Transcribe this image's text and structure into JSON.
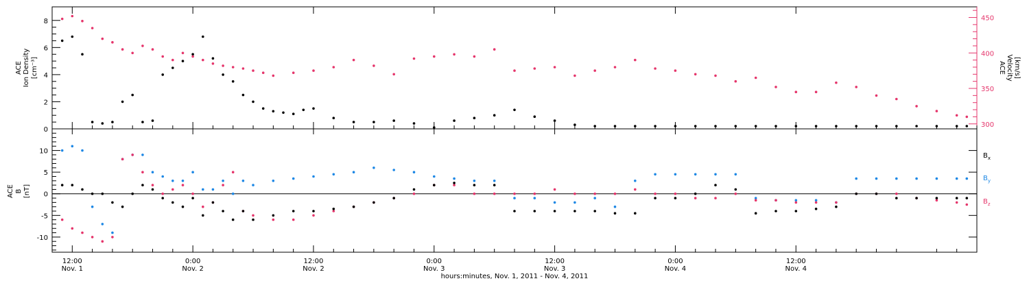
{
  "chart_data": [
    {
      "type": "scatter",
      "panel": "top",
      "left_ylabel_lines": [
        "ACE",
        "Ion Density",
        "[cm⁻³]"
      ],
      "right_ylabel_lines": [
        "ACE",
        "Velocity",
        "[km/s]"
      ],
      "ylim_left": [
        0,
        9
      ],
      "ylim_right": [
        293,
        465
      ],
      "left_yticks": [
        0,
        2,
        4,
        6,
        8
      ],
      "right_yticks": [
        300,
        350,
        400,
        450
      ],
      "x_range_hours": [
        -2,
        90
      ],
      "series": [
        {
          "axis": "left",
          "color": "#000000",
          "x": [
            -1,
            0,
            1,
            2,
            3,
            4,
            5,
            6,
            7,
            8,
            9,
            10,
            11,
            12,
            13,
            14,
            15,
            16,
            17,
            18,
            19,
            20,
            21,
            22,
            23,
            24,
            26,
            28,
            30,
            32,
            34,
            36,
            38,
            40,
            42,
            44,
            46,
            48,
            50,
            52,
            54,
            56,
            58,
            60,
            62,
            64,
            66,
            68,
            70,
            72,
            74,
            76,
            78,
            80,
            82,
            84,
            86,
            88,
            89
          ],
          "values": [
            6.5,
            6.8,
            5.5,
            0.5,
            0.4,
            0.5,
            2.0,
            2.5,
            0.5,
            0.6,
            4.0,
            4.5,
            5.0,
            5.5,
            6.8,
            5.2,
            4.0,
            3.5,
            2.5,
            2.0,
            1.5,
            1.3,
            1.2,
            1.1,
            1.4,
            1.5,
            0.8,
            0.5,
            0.5,
            0.6,
            0.4,
            0.1,
            0.6,
            0.8,
            1.0,
            1.4,
            0.9,
            0.6,
            0.3,
            0.2,
            0.2,
            0.2,
            0.2,
            0.2,
            0.2,
            0.2,
            0.2,
            0.2,
            0.2,
            0.2,
            0.2,
            0.2,
            0.2,
            0.2,
            0.2,
            0.2,
            0.2,
            0.2,
            0.2
          ]
        },
        {
          "axis": "right",
          "color": "#e5356b",
          "x": [
            -1,
            0,
            1,
            2,
            3,
            4,
            5,
            6,
            7,
            8,
            9,
            10,
            11,
            12,
            13,
            14,
            15,
            16,
            17,
            18,
            19,
            20,
            22,
            24,
            26,
            28,
            30,
            32,
            34,
            36,
            38,
            40,
            42,
            44,
            46,
            48,
            50,
            52,
            54,
            56,
            58,
            60,
            62,
            64,
            66,
            68,
            70,
            72,
            74,
            76,
            78,
            80,
            82,
            84,
            86,
            88,
            89
          ],
          "values": [
            448,
            452,
            445,
            435,
            420,
            415,
            405,
            400,
            410,
            405,
            395,
            390,
            400,
            395,
            390,
            385,
            382,
            380,
            378,
            375,
            372,
            368,
            372,
            375,
            380,
            390,
            382,
            370,
            392,
            395,
            398,
            395,
            405,
            375,
            378,
            380,
            368,
            375,
            380,
            390,
            378,
            375,
            370,
            368,
            360,
            365,
            352,
            345,
            345,
            358,
            352,
            340,
            335,
            325,
            318,
            312,
            310
          ]
        }
      ]
    },
    {
      "type": "scatter",
      "panel": "bottom",
      "ylabel_lines": [
        "ACE",
        "B",
        "[nT]"
      ],
      "ylim": [
        -13.5,
        15
      ],
      "yticks": [
        -10,
        -5,
        0,
        5,
        10
      ],
      "x_range_hours": [
        -2,
        90
      ],
      "series": [
        {
          "name": "Bx",
          "color": "#000000",
          "x": [
            -1,
            0,
            1,
            2,
            3,
            4,
            5,
            6,
            7,
            8,
            9,
            10,
            11,
            12,
            13,
            14,
            15,
            16,
            17,
            18,
            20,
            22,
            24,
            26,
            28,
            30,
            32,
            34,
            36,
            38,
            40,
            42,
            44,
            46,
            48,
            50,
            52,
            54,
            56,
            58,
            60,
            62,
            64,
            66,
            68,
            70,
            72,
            74,
            76,
            78,
            80,
            82,
            84,
            86,
            88,
            89
          ],
          "values": [
            2,
            2,
            1,
            0,
            0,
            -2,
            -3,
            0,
            2,
            1,
            -1,
            -2,
            -3,
            -1,
            -5,
            -2,
            -4,
            -6,
            -4,
            -6,
            -5,
            -4,
            -4,
            -3.5,
            -3,
            -2,
            -1,
            1,
            2,
            2.5,
            2,
            2,
            -4,
            -4,
            -4,
            -4,
            -4,
            -4.5,
            -4.5,
            -1,
            -1,
            0,
            2,
            1,
            -4.5,
            -4,
            -4,
            -3.5,
            -3,
            0,
            0,
            -1,
            -1,
            -1,
            -1,
            -1
          ]
        },
        {
          "name": "By",
          "color": "#1e88e5",
          "x": [
            -1,
            0,
            1,
            2,
            3,
            4,
            5,
            6,
            7,
            8,
            9,
            10,
            11,
            12,
            13,
            14,
            15,
            16,
            17,
            18,
            20,
            22,
            24,
            26,
            28,
            30,
            32,
            34,
            36,
            38,
            40,
            42,
            44,
            46,
            48,
            50,
            52,
            54,
            56,
            58,
            60,
            62,
            64,
            66,
            68,
            70,
            72,
            74,
            76,
            78,
            80,
            82,
            84,
            86,
            88,
            89
          ],
          "values": [
            10,
            11,
            10,
            -3,
            -7,
            -9,
            8,
            9,
            9,
            5,
            4,
            3,
            3,
            5,
            1,
            1,
            3,
            0,
            3,
            2,
            3,
            3.5,
            4,
            4.5,
            5,
            6,
            5.5,
            5,
            4,
            3.5,
            3,
            3,
            -1,
            -1,
            -2,
            -2,
            -1,
            -3,
            3,
            4.5,
            4.5,
            4.5,
            4.5,
            4.5,
            -1,
            -1.5,
            -1.5,
            -1.5,
            -2,
            3.5,
            3.5,
            3.5,
            3.5,
            3.5,
            3.5,
            3.5
          ]
        },
        {
          "name": "Bz",
          "color": "#e5356b",
          "x": [
            -1,
            0,
            1,
            2,
            3,
            4,
            5,
            6,
            7,
            8,
            9,
            10,
            11,
            12,
            13,
            14,
            15,
            16,
            17,
            18,
            20,
            22,
            24,
            26,
            28,
            30,
            32,
            34,
            36,
            38,
            40,
            42,
            44,
            46,
            48,
            50,
            52,
            54,
            56,
            58,
            60,
            62,
            64,
            66,
            68,
            70,
            72,
            74,
            76,
            78,
            80,
            82,
            84,
            86,
            88,
            89
          ],
          "values": [
            -6,
            -8,
            -9,
            -10,
            -11,
            -10,
            8,
            9,
            5,
            2,
            0,
            1,
            2,
            0,
            -3,
            -2,
            2,
            5,
            -4,
            -5,
            -6,
            -6,
            -5,
            -4,
            -3,
            -2,
            -1,
            0,
            2,
            2,
            0,
            0,
            0,
            0,
            1,
            0,
            0,
            0,
            1,
            0,
            0,
            -1,
            -1,
            0,
            -1.5,
            -1.5,
            -2,
            -2,
            -2,
            0,
            0,
            0,
            -1,
            -1.5,
            -2,
            -2.5
          ]
        }
      ]
    }
  ],
  "x_axis": {
    "ticks": [
      {
        "time": "12:00",
        "date": "Nov. 1"
      },
      {
        "time": "0:00",
        "date": "Nov. 2"
      },
      {
        "time": "12:00",
        "date": "Nov. 2"
      },
      {
        "time": "0:00",
        "date": "Nov. 3"
      },
      {
        "time": "12:00",
        "date": "Nov. 3"
      },
      {
        "time": "0:00",
        "date": "Nov. 4"
      },
      {
        "time": "12:00",
        "date": "Nov. 4"
      }
    ],
    "label": "hours:minutes, Nov.  1, 2011 - Nov.  4, 2011"
  },
  "legend": {
    "items": [
      {
        "letter": "B",
        "sub": "x"
      },
      {
        "letter": "B",
        "sub": "y"
      },
      {
        "letter": "B",
        "sub": "z"
      }
    ],
    "colors": [
      "#000000",
      "#1e88e5",
      "#e5356b"
    ]
  }
}
